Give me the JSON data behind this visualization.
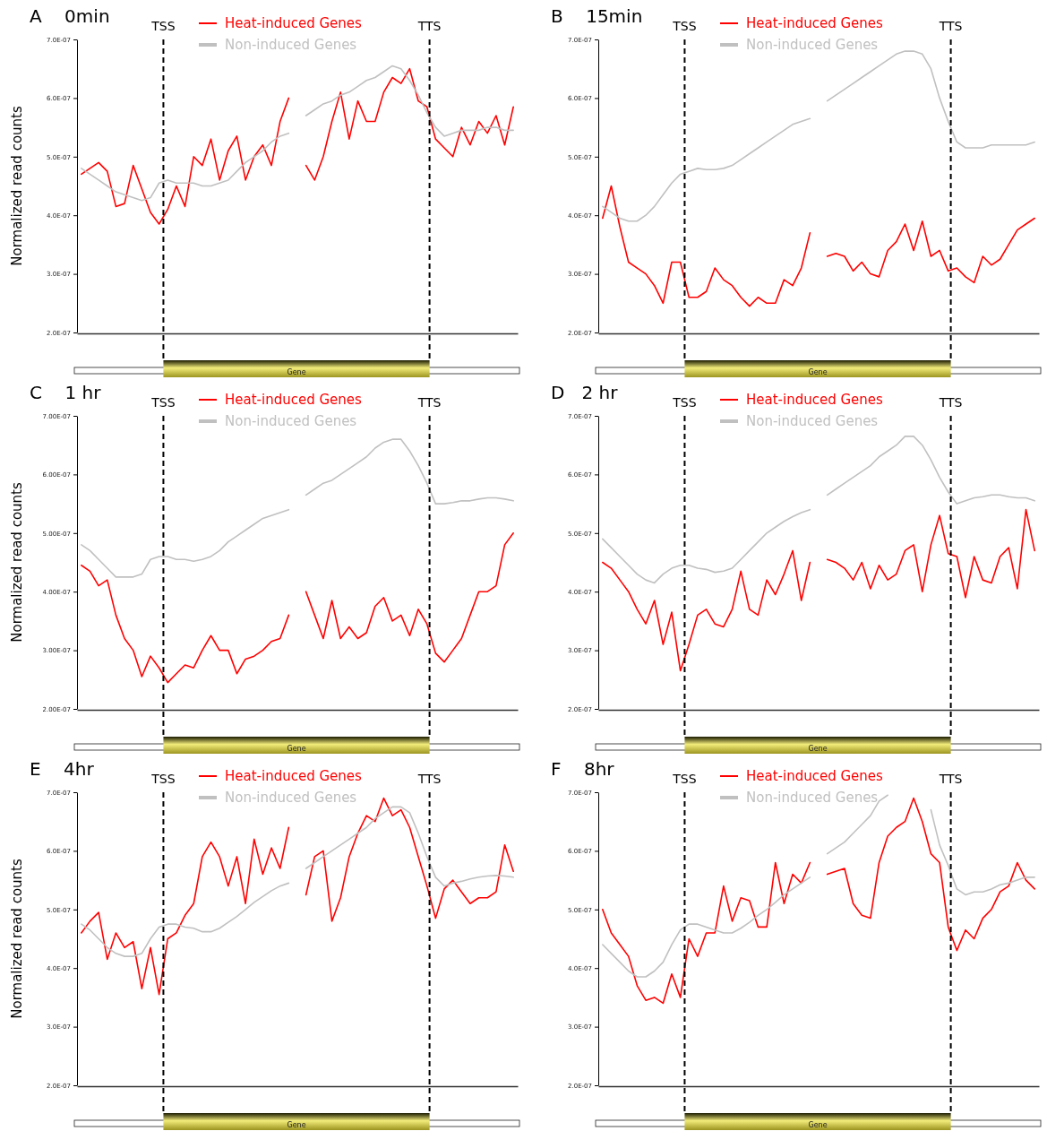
{
  "chart_data": [
    {
      "type": "line",
      "title": "A    0min",
      "ylabel": "Normalized read counts",
      "categories": [
        null,
        null,
        null,
        null,
        null,
        null,
        null,
        null,
        null,
        null,
        null,
        null,
        null,
        null,
        null,
        null,
        null,
        null,
        null,
        null,
        null,
        null,
        null,
        null,
        null,
        null,
        null,
        null,
        null,
        null,
        null,
        null,
        null,
        null,
        null,
        null,
        null,
        null,
        null,
        null,
        null,
        null,
        null,
        null,
        null,
        null,
        null,
        null,
        null,
        null,
        null
      ],
      "ylim": [
        2e-07,
        7e-07
      ],
      "yticks": [
        {
          "value": 2e-07,
          "label": "2.0E-07"
        },
        {
          "value": 3e-07,
          "label": "3.0E-07"
        },
        {
          "value": 4e-07,
          "label": "4.0E-07"
        },
        {
          "value": 5e-07,
          "label": "5.0E-07"
        },
        {
          "value": 6e-07,
          "label": "6.0E-07"
        },
        {
          "value": 7e-07,
          "label": "7.0E-07"
        }
      ],
      "tick_labels": "y",
      "legend": "top",
      "annotations": [
        "TSS",
        "TTS",
        "Gene"
      ],
      "series": [
        {
          "name": "Heat-induced Genes",
          "color": "#ff0000",
          "values": [
            4.7e-07,
            4.8e-07,
            4.9e-07,
            4.75e-07,
            4.15e-07,
            4.2e-07,
            4.85e-07,
            4.45e-07,
            4.05e-07,
            3.85e-07,
            4.1e-07,
            4.5e-07,
            4.15e-07,
            5e-07,
            4.85e-07,
            5.3e-07,
            4.6e-07,
            5.1e-07,
            5.35e-07,
            4.6e-07,
            5e-07,
            5.2e-07,
            4.85e-07,
            5.6e-07,
            6e-07,
            null,
            4.85e-07,
            4.6e-07,
            5e-07,
            5.6e-07,
            6.1e-07,
            5.3e-07,
            5.95e-07,
            5.6e-07,
            5.6e-07,
            6.1e-07,
            6.35e-07,
            6.25e-07,
            6.5e-07,
            5.95e-07,
            5.85e-07,
            5.3e-07,
            5.15e-07,
            5e-07,
            5.5e-07,
            5.2e-07,
            5.6e-07,
            5.4e-07,
            5.7e-07,
            5.2e-07,
            5.85e-07
          ]
        },
        {
          "name": "Non-induced Genes",
          "color": "#c0c0c0",
          "values": [
            4.8e-07,
            4.7e-07,
            4.6e-07,
            4.5e-07,
            4.4e-07,
            4.35e-07,
            4.3e-07,
            4.25e-07,
            4.3e-07,
            4.55e-07,
            4.6e-07,
            4.55e-07,
            4.55e-07,
            4.55e-07,
            4.5e-07,
            4.5e-07,
            4.55e-07,
            4.6e-07,
            4.75e-07,
            4.9e-07,
            5e-07,
            5.1e-07,
            5.25e-07,
            5.35e-07,
            5.4e-07,
            null,
            5.7e-07,
            5.8e-07,
            5.9e-07,
            5.95e-07,
            6.05e-07,
            6.1e-07,
            6.2e-07,
            6.3e-07,
            6.35e-07,
            6.45e-07,
            6.55e-07,
            6.5e-07,
            6.3e-07,
            6.05e-07,
            5.75e-07,
            5.5e-07,
            5.35e-07,
            5.4e-07,
            5.45e-07,
            5.45e-07,
            5.45e-07,
            5.5e-07,
            5.5e-07,
            5.45e-07,
            5.45e-07
          ]
        }
      ]
    },
    {
      "type": "line",
      "title": "B    15min",
      "categories": [
        null,
        null,
        null,
        null,
        null,
        null,
        null,
        null,
        null,
        null,
        null,
        null,
        null,
        null,
        null,
        null,
        null,
        null,
        null,
        null,
        null,
        null,
        null,
        null,
        null,
        null,
        null,
        null,
        null,
        null,
        null,
        null,
        null,
        null,
        null,
        null,
        null,
        null,
        null,
        null,
        null,
        null,
        null,
        null,
        null,
        null,
        null,
        null,
        null,
        null,
        null
      ],
      "ylim": [
        2e-07,
        7e-07
      ],
      "yticks": [
        {
          "value": 2e-07,
          "label": "2.0E-07"
        },
        {
          "value": 3e-07,
          "label": "3.0E-07"
        },
        {
          "value": 4e-07,
          "label": "4.0E-07"
        },
        {
          "value": 5e-07,
          "label": "5.0E-07"
        },
        {
          "value": 6e-07,
          "label": "6.0E-07"
        },
        {
          "value": 7e-07,
          "label": "7.0E-07"
        }
      ],
      "tick_labels": "y",
      "legend": "top",
      "annotations": [
        "TSS",
        "TTS",
        "Gene"
      ],
      "series": [
        {
          "name": "Heat-induced Genes",
          "color": "#ff0000",
          "values": [
            3.95e-07,
            4.5e-07,
            3.8e-07,
            3.2e-07,
            3.1e-07,
            3e-07,
            2.8e-07,
            2.5e-07,
            3.2e-07,
            3.2e-07,
            2.6e-07,
            2.6e-07,
            2.7e-07,
            3.1e-07,
            2.9e-07,
            2.8e-07,
            2.6e-07,
            2.45e-07,
            2.6e-07,
            2.5e-07,
            2.5e-07,
            2.9e-07,
            2.8e-07,
            3.1e-07,
            3.7e-07,
            null,
            3.3e-07,
            3.35e-07,
            3.3e-07,
            3.05e-07,
            3.2e-07,
            3e-07,
            2.95e-07,
            3.4e-07,
            3.55e-07,
            3.85e-07,
            3.4e-07,
            3.9e-07,
            3.3e-07,
            3.4e-07,
            3.05e-07,
            3.1e-07,
            2.95e-07,
            2.85e-07,
            3.3e-07,
            3.15e-07,
            3.25e-07,
            3.5e-07,
            3.75e-07,
            3.85e-07,
            3.95e-07
          ]
        },
        {
          "name": "Non-induced Genes",
          "color": "#c0c0c0",
          "values": [
            4.15e-07,
            4.05e-07,
            3.95e-07,
            3.9e-07,
            3.9e-07,
            4e-07,
            4.15e-07,
            4.35e-07,
            4.55e-07,
            4.7e-07,
            4.75e-07,
            4.8e-07,
            4.78e-07,
            4.78e-07,
            4.8e-07,
            4.85e-07,
            4.95e-07,
            5.05e-07,
            5.15e-07,
            5.25e-07,
            5.35e-07,
            5.45e-07,
            5.55e-07,
            5.6e-07,
            5.65e-07,
            null,
            5.95e-07,
            6.05e-07,
            6.15e-07,
            6.25e-07,
            6.35e-07,
            6.45e-07,
            6.55e-07,
            6.65e-07,
            6.75e-07,
            6.8e-07,
            6.8e-07,
            6.75e-07,
            6.5e-07,
            6e-07,
            5.6e-07,
            5.25e-07,
            5.15e-07,
            5.15e-07,
            5.15e-07,
            5.2e-07,
            5.2e-07,
            5.2e-07,
            5.2e-07,
            5.2e-07,
            5.25e-07
          ]
        }
      ]
    },
    {
      "type": "line",
      "title": "C    1 hr",
      "ylabel": "Normalized read counts",
      "categories": [
        null,
        null,
        null,
        null,
        null,
        null,
        null,
        null,
        null,
        null,
        null,
        null,
        null,
        null,
        null,
        null,
        null,
        null,
        null,
        null,
        null,
        null,
        null,
        null,
        null,
        null,
        null,
        null,
        null,
        null,
        null,
        null,
        null,
        null,
        null,
        null,
        null,
        null,
        null,
        null,
        null,
        null,
        null,
        null,
        null,
        null,
        null,
        null,
        null,
        null,
        null
      ],
      "ylim": [
        2e-07,
        7e-07
      ],
      "yticks": [
        {
          "value": 2e-07,
          "label": "2.00E-07"
        },
        {
          "value": 3e-07,
          "label": "3.00E-07"
        },
        {
          "value": 4e-07,
          "label": "4.00E-07"
        },
        {
          "value": 5e-07,
          "label": "5.00E-07"
        },
        {
          "value": 6e-07,
          "label": "6.00E-07"
        },
        {
          "value": 7e-07,
          "label": "7.00E-07"
        }
      ],
      "tick_labels": "y",
      "legend": "top",
      "annotations": [
        "TSS",
        "TTS",
        "Gene"
      ],
      "series": [
        {
          "name": "Heat-induced Genes",
          "color": "#ff0000",
          "values": [
            4.45e-07,
            4.35e-07,
            4.1e-07,
            4.2e-07,
            3.6e-07,
            3.2e-07,
            3e-07,
            2.55e-07,
            2.9e-07,
            2.7e-07,
            2.45e-07,
            2.6e-07,
            2.75e-07,
            2.7e-07,
            3e-07,
            3.25e-07,
            3e-07,
            3e-07,
            2.6e-07,
            2.85e-07,
            2.9e-07,
            3e-07,
            3.15e-07,
            3.2e-07,
            3.6e-07,
            null,
            4e-07,
            3.6e-07,
            3.2e-07,
            3.85e-07,
            3.2e-07,
            3.4e-07,
            3.2e-07,
            3.3e-07,
            3.75e-07,
            3.9e-07,
            3.5e-07,
            3.6e-07,
            3.25e-07,
            3.7e-07,
            3.45e-07,
            2.95e-07,
            2.8e-07,
            3e-07,
            3.2e-07,
            3.6e-07,
            4e-07,
            4e-07,
            4.1e-07,
            4.8e-07,
            5e-07
          ]
        },
        {
          "name": "Non-induced Genes",
          "color": "#c0c0c0",
          "values": [
            4.8e-07,
            4.7e-07,
            4.55e-07,
            4.4e-07,
            4.25e-07,
            4.25e-07,
            4.25e-07,
            4.3e-07,
            4.55e-07,
            4.6e-07,
            4.6e-07,
            4.55e-07,
            4.55e-07,
            4.52e-07,
            4.55e-07,
            4.6e-07,
            4.7e-07,
            4.85e-07,
            4.95e-07,
            5.05e-07,
            5.15e-07,
            5.25e-07,
            5.3e-07,
            5.35e-07,
            5.4e-07,
            null,
            5.65e-07,
            5.75e-07,
            5.85e-07,
            5.9e-07,
            6e-07,
            6.1e-07,
            6.2e-07,
            6.3e-07,
            6.45e-07,
            6.55e-07,
            6.6e-07,
            6.6e-07,
            6.4e-07,
            6.15e-07,
            5.85e-07,
            5.5e-07,
            5.5e-07,
            5.52e-07,
            5.55e-07,
            5.55e-07,
            5.58e-07,
            5.6e-07,
            5.6e-07,
            5.58e-07,
            5.55e-07
          ]
        }
      ]
    },
    {
      "type": "line",
      "title": "D   2 hr",
      "categories": [
        null,
        null,
        null,
        null,
        null,
        null,
        null,
        null,
        null,
        null,
        null,
        null,
        null,
        null,
        null,
        null,
        null,
        null,
        null,
        null,
        null,
        null,
        null,
        null,
        null,
        null,
        null,
        null,
        null,
        null,
        null,
        null,
        null,
        null,
        null,
        null,
        null,
        null,
        null,
        null,
        null,
        null,
        null,
        null,
        null,
        null,
        null,
        null,
        null,
        null,
        null
      ],
      "ylim": [
        2e-07,
        7e-07
      ],
      "yticks": [
        {
          "value": 2e-07,
          "label": "2.0E-07"
        },
        {
          "value": 3e-07,
          "label": "3.0E-07"
        },
        {
          "value": 4e-07,
          "label": "4.0E-07"
        },
        {
          "value": 5e-07,
          "label": "5.0E-07"
        },
        {
          "value": 6e-07,
          "label": "6.0E-07"
        },
        {
          "value": 7e-07,
          "label": "7.0E-07"
        }
      ],
      "tick_labels": "y",
      "legend": "top",
      "annotations": [
        "TSS",
        "TTS",
        "Gene"
      ],
      "series": [
        {
          "name": "Heat-induced Genes",
          "color": "#ff0000",
          "values": [
            4.5e-07,
            4.4e-07,
            4.2e-07,
            4e-07,
            3.7e-07,
            3.45e-07,
            3.85e-07,
            3.1e-07,
            3.65e-07,
            2.65e-07,
            3.1e-07,
            3.6e-07,
            3.7e-07,
            3.45e-07,
            3.4e-07,
            3.7e-07,
            4.35e-07,
            3.7e-07,
            3.6e-07,
            4.2e-07,
            3.95e-07,
            4.3e-07,
            4.7e-07,
            3.85e-07,
            4.5e-07,
            null,
            4.55e-07,
            4.5e-07,
            4.4e-07,
            4.2e-07,
            4.5e-07,
            4.05e-07,
            4.45e-07,
            4.2e-07,
            4.3e-07,
            4.7e-07,
            4.8e-07,
            4e-07,
            4.8e-07,
            5.3e-07,
            4.65e-07,
            4.6e-07,
            3.9e-07,
            4.6e-07,
            4.2e-07,
            4.15e-07,
            4.6e-07,
            4.75e-07,
            4.05e-07,
            5.4e-07,
            4.7e-07
          ]
        },
        {
          "name": "Non-induced Genes",
          "color": "#c0c0c0",
          "values": [
            4.9e-07,
            4.75e-07,
            4.6e-07,
            4.45e-07,
            4.3e-07,
            4.2e-07,
            4.15e-07,
            4.3e-07,
            4.4e-07,
            4.45e-07,
            4.45e-07,
            4.4e-07,
            4.38e-07,
            4.33e-07,
            4.35e-07,
            4.4e-07,
            4.55e-07,
            4.7e-07,
            4.85e-07,
            5e-07,
            5.1e-07,
            5.2e-07,
            5.28e-07,
            5.35e-07,
            5.4e-07,
            null,
            5.65e-07,
            5.75e-07,
            5.85e-07,
            5.95e-07,
            6.05e-07,
            6.15e-07,
            6.3e-07,
            6.4e-07,
            6.5e-07,
            6.65e-07,
            6.65e-07,
            6.5e-07,
            6.25e-07,
            5.95e-07,
            5.7e-07,
            5.5e-07,
            5.55e-07,
            5.6e-07,
            5.62e-07,
            5.65e-07,
            5.65e-07,
            5.62e-07,
            5.6e-07,
            5.6e-07,
            5.55e-07
          ]
        }
      ]
    },
    {
      "type": "line",
      "title": "E    4hr",
      "ylabel": "Normalized read counts",
      "categories": [
        null,
        null,
        null,
        null,
        null,
        null,
        null,
        null,
        null,
        null,
        null,
        null,
        null,
        null,
        null,
        null,
        null,
        null,
        null,
        null,
        null,
        null,
        null,
        null,
        null,
        null,
        null,
        null,
        null,
        null,
        null,
        null,
        null,
        null,
        null,
        null,
        null,
        null,
        null,
        null,
        null,
        null,
        null,
        null,
        null,
        null,
        null,
        null,
        null,
        null,
        null
      ],
      "ylim": [
        2e-07,
        7e-07
      ],
      "yticks": [
        {
          "value": 2e-07,
          "label": "2.0E-07"
        },
        {
          "value": 3e-07,
          "label": "3.0E-07"
        },
        {
          "value": 4e-07,
          "label": "4.0E-07"
        },
        {
          "value": 5e-07,
          "label": "5.0E-07"
        },
        {
          "value": 6e-07,
          "label": "6.0E-07"
        },
        {
          "value": 7e-07,
          "label": "7.0E-07"
        }
      ],
      "tick_labels": "y",
      "legend": "top",
      "annotations": [
        "TSS",
        "TTS",
        "Gene"
      ],
      "series": [
        {
          "name": "Heat-induced Genes",
          "color": "#ff0000",
          "values": [
            4.6e-07,
            4.8e-07,
            4.95e-07,
            4.15e-07,
            4.6e-07,
            4.35e-07,
            4.45e-07,
            3.65e-07,
            4.35e-07,
            3.55e-07,
            4.5e-07,
            4.6e-07,
            4.9e-07,
            5.1e-07,
            5.9e-07,
            6.15e-07,
            5.9e-07,
            5.4e-07,
            5.9e-07,
            5.1e-07,
            6.2e-07,
            5.6e-07,
            6.05e-07,
            5.7e-07,
            6.4e-07,
            null,
            5.25e-07,
            5.9e-07,
            6e-07,
            4.8e-07,
            5.2e-07,
            5.9e-07,
            6.3e-07,
            6.6e-07,
            6.5e-07,
            6.9e-07,
            6.6e-07,
            6.7e-07,
            6.4e-07,
            5.9e-07,
            5.4e-07,
            4.85e-07,
            5.35e-07,
            5.5e-07,
            5.3e-07,
            5.1e-07,
            5.2e-07,
            5.2e-07,
            5.3e-07,
            6.1e-07,
            5.65e-07
          ]
        },
        {
          "name": "Non-induced Genes",
          "color": "#c0c0c0",
          "values": [
            4.75e-07,
            4.65e-07,
            4.5e-07,
            4.35e-07,
            4.25e-07,
            4.2e-07,
            4.2e-07,
            4.25e-07,
            4.5e-07,
            4.7e-07,
            4.75e-07,
            4.75e-07,
            4.7e-07,
            4.68e-07,
            4.62e-07,
            4.62e-07,
            4.68e-07,
            4.78e-07,
            4.88e-07,
            5e-07,
            5.12e-07,
            5.22e-07,
            5.32e-07,
            5.4e-07,
            5.45e-07,
            null,
            5.7e-07,
            5.8e-07,
            5.9e-07,
            6e-07,
            6.1e-07,
            6.2e-07,
            6.3e-07,
            6.4e-07,
            6.55e-07,
            6.65e-07,
            6.75e-07,
            6.75e-07,
            6.65e-07,
            6.3e-07,
            5.9e-07,
            5.55e-07,
            5.4e-07,
            5.45e-07,
            5.48e-07,
            5.52e-07,
            5.55e-07,
            5.57e-07,
            5.58e-07,
            5.57e-07,
            5.55e-07
          ]
        }
      ]
    },
    {
      "type": "line",
      "title": "F    8hr",
      "categories": [
        null,
        null,
        null,
        null,
        null,
        null,
        null,
        null,
        null,
        null,
        null,
        null,
        null,
        null,
        null,
        null,
        null,
        null,
        null,
        null,
        null,
        null,
        null,
        null,
        null,
        null,
        null,
        null,
        null,
        null,
        null,
        null,
        null,
        null,
        null,
        null,
        null,
        null,
        null,
        null,
        null,
        null,
        null,
        null,
        null,
        null,
        null,
        null,
        null,
        null,
        null
      ],
      "ylim": [
        2e-07,
        7e-07
      ],
      "yticks": [
        {
          "value": 2e-07,
          "label": "2.0E-07"
        },
        {
          "value": 3e-07,
          "label": "3.0E-07"
        },
        {
          "value": 4e-07,
          "label": "4.0E-07"
        },
        {
          "value": 5e-07,
          "label": "5.0E-07"
        },
        {
          "value": 6e-07,
          "label": "6.0E-07"
        },
        {
          "value": 7e-07,
          "label": "7.0E-07"
        }
      ],
      "tick_labels": "y",
      "legend": "top",
      "annotations": [
        "TSS",
        "TTS",
        "Gene"
      ],
      "series": [
        {
          "name": "Heat-induced Genes",
          "color": "#ff0000",
          "values": [
            5e-07,
            4.6e-07,
            4.4e-07,
            4.2e-07,
            3.7e-07,
            3.45e-07,
            3.5e-07,
            3.4e-07,
            3.9e-07,
            3.5e-07,
            4.5e-07,
            4.2e-07,
            4.6e-07,
            4.6e-07,
            5.4e-07,
            4.8e-07,
            5.2e-07,
            5.15e-07,
            4.7e-07,
            4.7e-07,
            5.8e-07,
            5.1e-07,
            5.6e-07,
            5.45e-07,
            5.8e-07,
            null,
            5.6e-07,
            5.65e-07,
            5.7e-07,
            5.1e-07,
            4.9e-07,
            4.85e-07,
            5.8e-07,
            6.25e-07,
            6.4e-07,
            6.5e-07,
            6.9e-07,
            6.5e-07,
            5.95e-07,
            5.8e-07,
            4.7e-07,
            4.3e-07,
            4.65e-07,
            4.5e-07,
            4.85e-07,
            5e-07,
            5.3e-07,
            5.4e-07,
            5.8e-07,
            5.5e-07,
            5.35e-07
          ]
        },
        {
          "name": "Non-induced Genes",
          "color": "#c0c0c0",
          "values": [
            4.4e-07,
            4.25e-07,
            4.1e-07,
            3.95e-07,
            3.85e-07,
            3.85e-07,
            3.95e-07,
            4.1e-07,
            4.4e-07,
            4.65e-07,
            4.75e-07,
            4.75e-07,
            4.7e-07,
            4.65e-07,
            4.6e-07,
            4.6e-07,
            4.68e-07,
            4.78e-07,
            4.9e-07,
            5e-07,
            5.12e-07,
            5.25e-07,
            5.35e-07,
            5.45e-07,
            5.55e-07,
            null,
            5.95e-07,
            6.05e-07,
            6.15e-07,
            6.3e-07,
            6.45e-07,
            6.6e-07,
            6.85e-07,
            6.95e-07,
            null,
            null,
            null,
            null,
            6.7e-07,
            6.1e-07,
            5.75e-07,
            5.35e-07,
            5.25e-07,
            5.3e-07,
            5.3e-07,
            5.35e-07,
            5.42e-07,
            5.45e-07,
            5.5e-07,
            5.55e-07,
            5.55e-07
          ]
        }
      ]
    }
  ]
}
